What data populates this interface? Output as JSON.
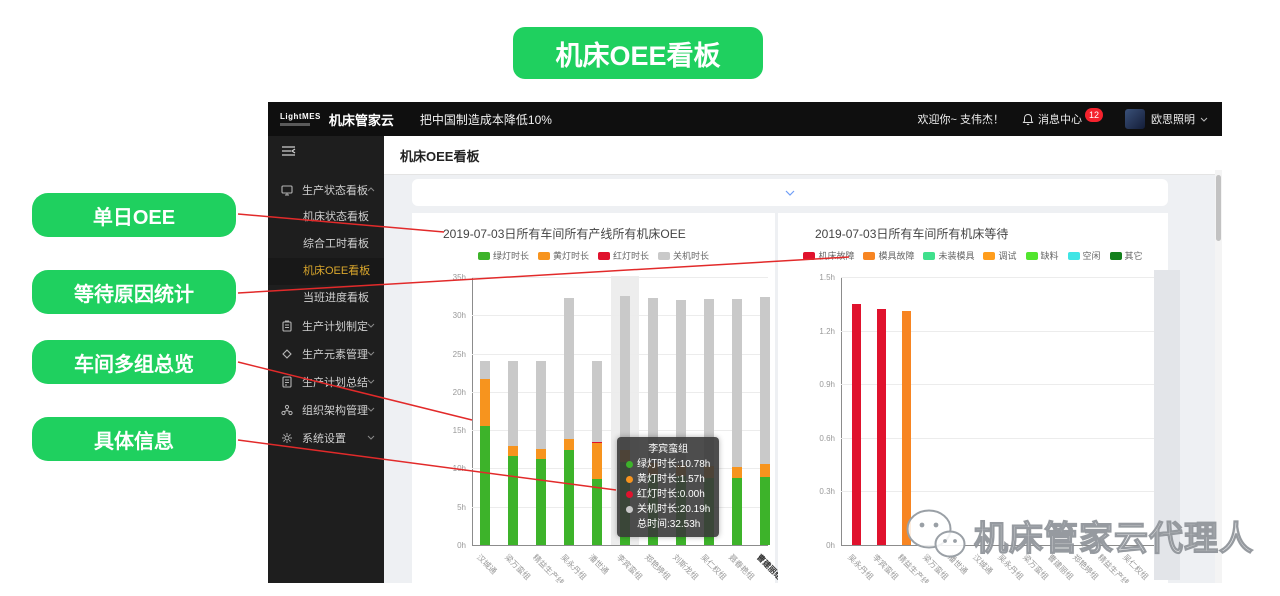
{
  "annotation": {
    "banner": "机床OEE看板",
    "callouts": [
      {
        "label": "单日OEE"
      },
      {
        "label": "等待原因统计"
      },
      {
        "label": "车间多组总览"
      },
      {
        "label": "具体信息"
      }
    ]
  },
  "colors": {
    "accent_green": "#1fd05f",
    "annotation_line": "#e22a2a",
    "badge_red": "#f5222d",
    "active_menu_gold": "#d9a62c",
    "filter_chevron_blue": "#6f9ef7"
  },
  "navbar": {
    "logo": "LightMES",
    "brand": "机床管家云",
    "slogan": "把中国制造成本降低10%",
    "welcome": "欢迎你~ 支伟杰！",
    "message_center": "消息中心",
    "message_count": "12",
    "company": "欧思照明"
  },
  "sidebar": {
    "items": [
      {
        "label": "生产状态看板",
        "icon": "monitor-icon",
        "expanded": true,
        "children": [
          {
            "label": "机床状态看板"
          },
          {
            "label": "综合工时看板"
          },
          {
            "label": "机床OEE看板",
            "active": true
          },
          {
            "label": "当班进度看板"
          }
        ]
      },
      {
        "label": "生产计划制定",
        "icon": "clipboard-icon"
      },
      {
        "label": "生产元素管理",
        "icon": "diamond-icon"
      },
      {
        "label": "生产计划总结",
        "icon": "report-icon"
      },
      {
        "label": "组织架构管理",
        "icon": "org-icon"
      },
      {
        "label": "系统设置",
        "icon": "gear-icon"
      }
    ]
  },
  "main": {
    "page_title": "机床OEE看板"
  },
  "watermark": {
    "text": "机床管家云代理人",
    "icon": "wechat-icon"
  },
  "chart_data": [
    {
      "type": "bar",
      "stacked": true,
      "title": "2019-07-03日所有车间所有产线所有机床OEE",
      "legend_position": "top",
      "grid": true,
      "ylim": [
        0,
        35
      ],
      "ytick_step": 5,
      "yticks": [
        "0h",
        "5h",
        "10h",
        "15h",
        "20h",
        "25h",
        "30h",
        "35h"
      ],
      "categories": [
        "汉城通",
        "梁万蛮组",
        "精益生产线",
        "吴永丹组",
        "潘世通",
        "李宾蛮组",
        "郑艳婷组",
        "刘斯龙组",
        "吴仁权组",
        "聂春艳组",
        "曹建丽组"
      ],
      "series": [
        {
          "name": "绿灯时长",
          "color": "#3db32a",
          "values": [
            15.5,
            11.6,
            11.2,
            12.4,
            8.6,
            10.78,
            9.2,
            9.0,
            8.8,
            8.7,
            8.9
          ]
        },
        {
          "name": "黄灯时长",
          "color": "#f7941e",
          "values": [
            6.2,
            1.3,
            1.4,
            1.4,
            4.75,
            1.57,
            1.5,
            1.4,
            1.5,
            1.5,
            1.7
          ]
        },
        {
          "name": "红灯时长",
          "color": "#e0122d",
          "values": [
            0,
            0,
            0,
            0,
            0.15,
            0,
            0,
            0,
            0,
            0,
            0
          ]
        },
        {
          "name": "关机时长",
          "color": "#c9c9c9",
          "values": [
            2.3,
            11.1,
            11.4,
            18.4,
            10.5,
            20.19,
            21.5,
            21.6,
            21.8,
            21.9,
            21.8
          ]
        }
      ],
      "highlight_category_index": 5,
      "tooltip": {
        "title": "李宾蛮组",
        "rows": [
          {
            "label": "绿灯时长",
            "value": "10.78h",
            "color": "#3db32a"
          },
          {
            "label": "黄灯时长",
            "value": "1.57h",
            "color": "#f7941e"
          },
          {
            "label": "红灯时长",
            "value": "0.00h",
            "color": "#e0122d"
          },
          {
            "label": "关机时长",
            "value": "20.19h",
            "color": "#c9c9c9"
          },
          {
            "label": "总时间",
            "value": "32.53h",
            "color": ""
          }
        ]
      }
    },
    {
      "type": "bar",
      "stacked": false,
      "title": "2019-07-03日所有车间所有机床等待",
      "legend_position": "top",
      "grid": true,
      "ylim": [
        0,
        1.5
      ],
      "ytick_step": 0.3,
      "yticks": [
        "0h",
        "0.3h",
        "0.6h",
        "0.9h",
        "1.2h",
        "1.5h"
      ],
      "legend": [
        {
          "name": "机床故障",
          "color": "#e0122d"
        },
        {
          "name": "模具故障",
          "color": "#f78522"
        },
        {
          "name": "未装模具",
          "color": "#3fe08c"
        },
        {
          "name": "调试",
          "color": "#ff9d1c"
        },
        {
          "name": "缺料",
          "color": "#52e52e"
        },
        {
          "name": "空闲",
          "color": "#3fe5e5"
        },
        {
          "name": "其它",
          "color": "#13801c"
        }
      ],
      "categories": [
        "吴永丹组",
        "李宾蛮组",
        "精益生产线",
        "梁万蛮组",
        "潘世通",
        "汉城通",
        "吴永丹组",
        "梁万蛮组",
        "曹建丽组",
        "郑艳婷组",
        "精益生产线",
        "吴仁权组"
      ],
      "values": [
        1.35,
        1.32,
        1.31,
        0,
        0,
        0,
        0,
        0,
        0,
        0,
        0,
        0
      ],
      "bar_colors": [
        "#e0122d",
        "#e0122d",
        "#f78522",
        "",
        "",
        "",
        "",
        "",
        "",
        "",
        "",
        ""
      ]
    }
  ]
}
